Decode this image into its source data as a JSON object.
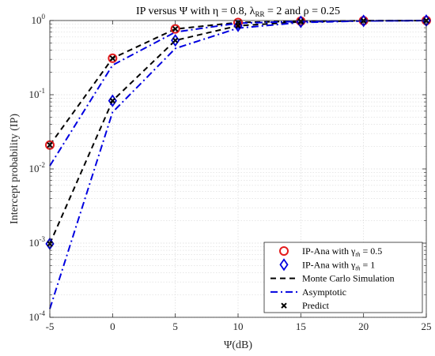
{
  "chart_data": {
    "type": "line",
    "title": "IP versus Ψ with η = 0.8, λ",
    "title_sub": "RR",
    "title_tail": " = 2 and ρ = 0.25",
    "xlabel": "Ψ(dB)",
    "ylabel": "Intercept probability (IP)",
    "x": [
      -5,
      0,
      5,
      10,
      15,
      20,
      25
    ],
    "xlim": [
      -5,
      25
    ],
    "ylim": [
      0.0001,
      1
    ],
    "yscale": "log",
    "grid": true,
    "legend_position": "bottom-right",
    "x_ticks": [
      "-5",
      "0",
      "5",
      "10",
      "15",
      "20",
      "25"
    ],
    "y_ticks": [
      {
        "base": "10",
        "exp": "0",
        "value": 1
      },
      {
        "base": "10",
        "exp": "-1",
        "value": 0.1
      },
      {
        "base": "10",
        "exp": "-2",
        "value": 0.01
      },
      {
        "base": "10",
        "exp": "-3",
        "value": 0.001
      },
      {
        "base": "10",
        "exp": "-4",
        "value": 0.0001
      }
    ],
    "series": [
      {
        "name": "IP-Ana with γth = 0.5",
        "legend_prefix": "IP-Ana with γ",
        "legend_sub": "th",
        "legend_suffix": " = 0.5",
        "marker": "circle",
        "color": "#e31a1c",
        "values": [
          0.021,
          0.31,
          0.77,
          0.94,
          0.98,
          0.995,
          0.999
        ]
      },
      {
        "name": "IP-Ana with γth = 1",
        "legend_prefix": "IP-Ana with γ",
        "legend_sub": "th",
        "legend_suffix": " = 1",
        "marker": "diamond",
        "color": "#0000e0",
        "values": [
          0.00098,
          0.083,
          0.54,
          0.85,
          0.96,
          0.99,
          0.998
        ]
      },
      {
        "name": "Monte Carlo Simulation",
        "line": "dashed",
        "color": "#000000",
        "group": "sim",
        "curves": [
          [
            0.021,
            0.31,
            0.77,
            0.94,
            0.98,
            0.995,
            0.999
          ],
          [
            0.00098,
            0.083,
            0.54,
            0.85,
            0.96,
            0.99,
            0.998
          ]
        ]
      },
      {
        "name": "Asymptotic",
        "line": "dashdot",
        "color": "#0000e0",
        "group": "asym",
        "curves": [
          [
            0.011,
            0.25,
            0.7,
            0.92,
            0.975,
            0.993,
            0.998
          ],
          [
            0.00013,
            0.058,
            0.42,
            0.79,
            0.94,
            0.985,
            0.997
          ]
        ]
      },
      {
        "name": "Predict",
        "marker": "x",
        "color": "#000000",
        "curves": [
          [
            0.021,
            0.31,
            0.77,
            0.94,
            0.98,
            0.995,
            0.999
          ],
          [
            0.00098,
            0.083,
            0.54,
            0.85,
            0.96,
            0.99,
            0.998
          ]
        ]
      }
    ],
    "colors": {
      "grid": "#d9d9d9",
      "axis": "#262626"
    }
  }
}
